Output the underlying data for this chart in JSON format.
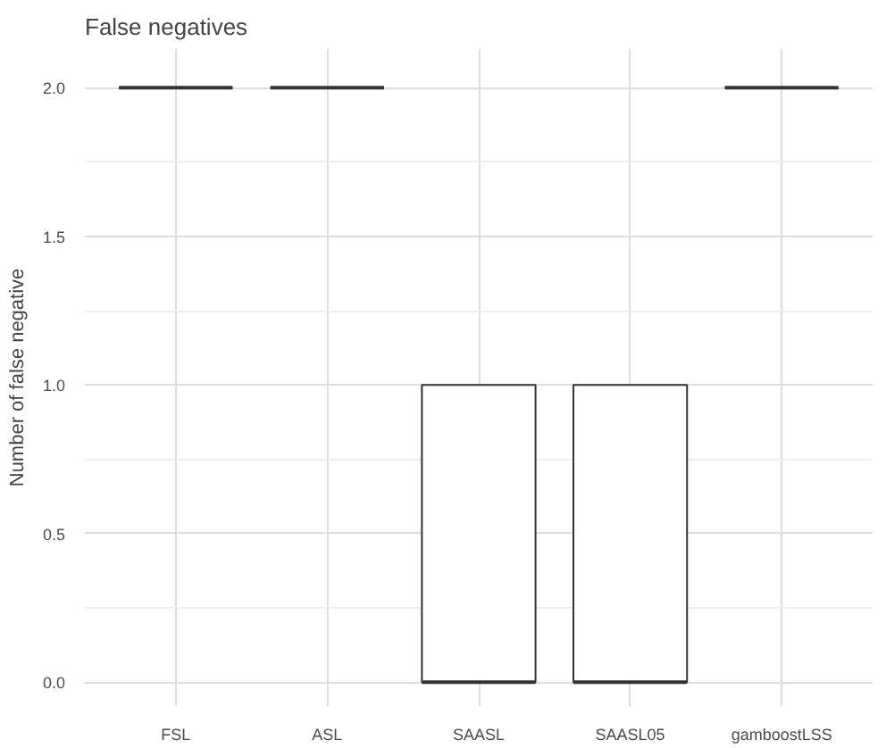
{
  "chart_data": {
    "type": "box",
    "title": "False negatives",
    "ylabel": "Number of false negative",
    "categories": [
      "FSL",
      "ASL",
      "SAASL",
      "SAASL05",
      "gamboostLSS"
    ],
    "boxes": [
      {
        "low": 2,
        "q1": 2,
        "median": 2,
        "q3": 2,
        "high": 2
      },
      {
        "low": 2,
        "q1": 2,
        "median": 2,
        "q3": 2,
        "high": 2
      },
      {
        "low": 0,
        "q1": 0,
        "median": 0,
        "q3": 1,
        "high": 1
      },
      {
        "low": 0,
        "q1": 0,
        "median": 0,
        "q3": 1,
        "high": 1
      },
      {
        "low": 2,
        "q1": 2,
        "median": 2,
        "q3": 2,
        "high": 2
      }
    ],
    "ylim": [
      -0.08,
      2.13
    ],
    "yticks": [
      {
        "value": 0,
        "label": "0.0"
      },
      {
        "value": 0.5,
        "label": "0.5"
      },
      {
        "value": 1,
        "label": "1.0"
      },
      {
        "value": 1.5,
        "label": "1.5"
      },
      {
        "value": 2,
        "label": "2.0"
      }
    ],
    "grid": true
  }
}
